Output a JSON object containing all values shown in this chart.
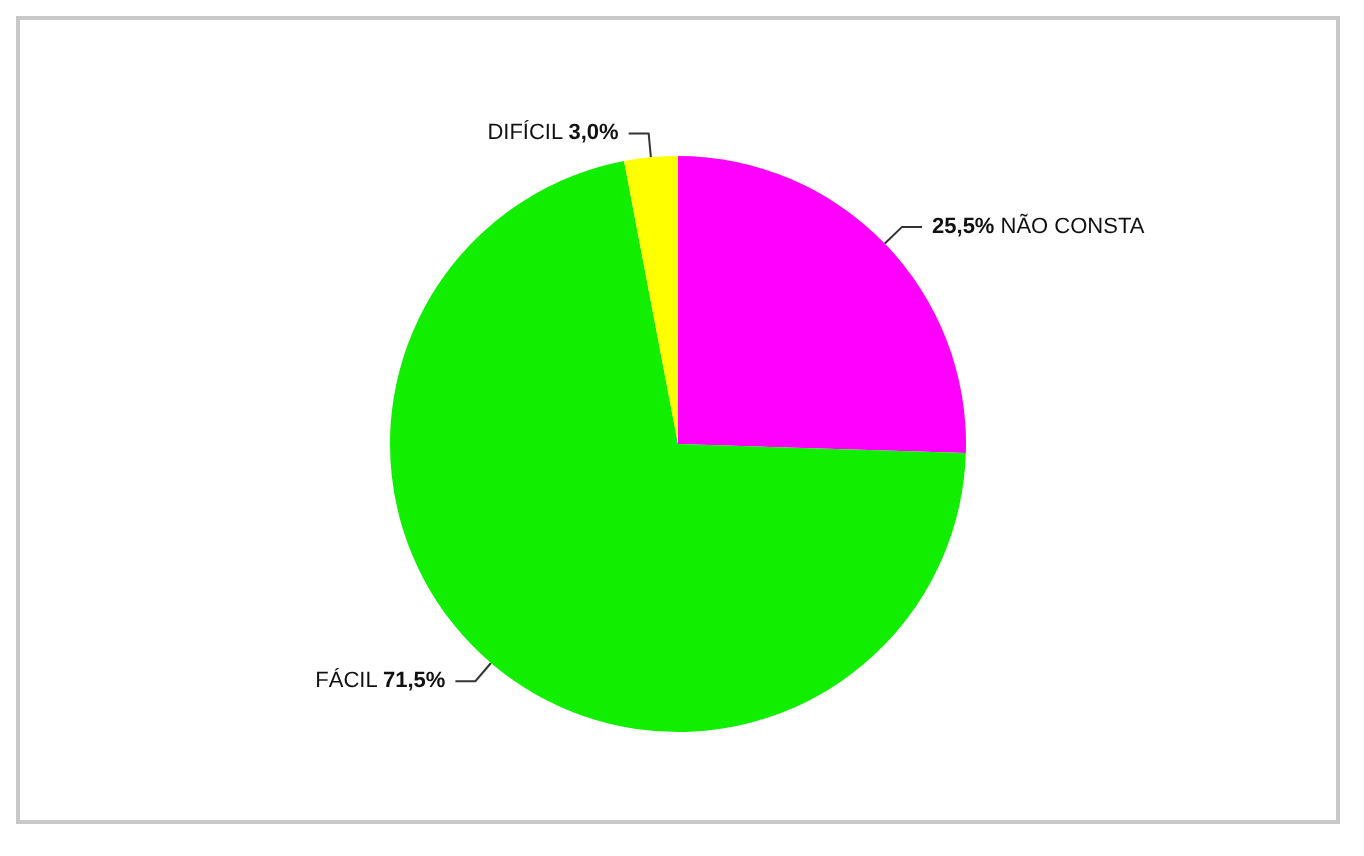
{
  "chart_data": {
    "type": "pie",
    "categories": [
      "NÃO CONSTA",
      "FÁCIL",
      "DIFÍCIL"
    ],
    "values": [
      25.5,
      71.5,
      3.0
    ],
    "colors": [
      "#ff00ff",
      "#11ee00",
      "#ffff00"
    ],
    "value_labels": [
      "25,5%",
      "71,5%",
      "3,0%"
    ],
    "legend": false
  }
}
